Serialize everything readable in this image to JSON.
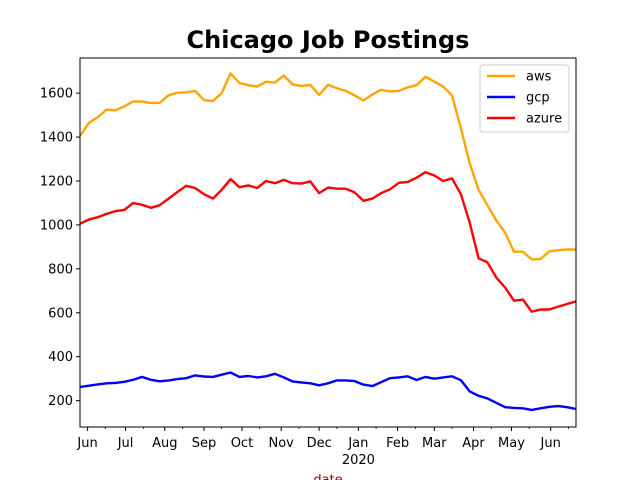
{
  "chart_data": {
    "type": "line",
    "title": "Chicago Job Postings",
    "xlabel": "date",
    "ylabel": "",
    "ylim": [
      80,
      1760
    ],
    "yticks": [
      200,
      400,
      600,
      800,
      1000,
      1200,
      1400,
      1600
    ],
    "xlim": [
      "2019-05-26",
      "2020-06-21"
    ],
    "xtick_labels": [
      {
        "date": "2019-06-01",
        "label": "Jun"
      },
      {
        "date": "2019-07-01",
        "label": "Jul"
      },
      {
        "date": "2019-08-01",
        "label": "Aug"
      },
      {
        "date": "2019-09-01",
        "label": "Sep"
      },
      {
        "date": "2019-10-01",
        "label": "Oct"
      },
      {
        "date": "2019-11-01",
        "label": "Nov"
      },
      {
        "date": "2019-12-01",
        "label": "Dec"
      },
      {
        "date": "2020-01-01",
        "label": "Jan"
      },
      {
        "date": "2020-02-01",
        "label": "Feb"
      },
      {
        "date": "2020-03-01",
        "label": "Mar"
      },
      {
        "date": "2020-04-01",
        "label": "Apr"
      },
      {
        "date": "2020-05-01",
        "label": "May"
      },
      {
        "date": "2020-06-01",
        "label": "Jun"
      }
    ],
    "year_label": "2020",
    "legend_position": "top-right",
    "x": [
      "2019-05-26",
      "2019-06-02",
      "2019-06-09",
      "2019-06-16",
      "2019-06-23",
      "2019-06-30",
      "2019-07-07",
      "2019-07-14",
      "2019-07-21",
      "2019-07-28",
      "2019-08-04",
      "2019-08-11",
      "2019-08-18",
      "2019-08-25",
      "2019-09-01",
      "2019-09-08",
      "2019-09-15",
      "2019-09-22",
      "2019-09-29",
      "2019-10-06",
      "2019-10-13",
      "2019-10-20",
      "2019-10-27",
      "2019-11-03",
      "2019-11-10",
      "2019-11-17",
      "2019-11-24",
      "2019-12-01",
      "2019-12-08",
      "2019-12-15",
      "2019-12-22",
      "2019-12-29",
      "2020-01-05",
      "2020-01-12",
      "2020-01-19",
      "2020-01-26",
      "2020-02-02",
      "2020-02-09",
      "2020-02-16",
      "2020-02-23",
      "2020-03-01",
      "2020-03-08",
      "2020-03-15",
      "2020-03-22",
      "2020-03-29",
      "2020-04-05",
      "2020-04-12",
      "2020-04-19",
      "2020-04-26",
      "2020-05-03",
      "2020-05-10",
      "2020-05-17",
      "2020-05-24",
      "2020-05-31",
      "2020-06-07",
      "2020-06-14",
      "2020-06-21"
    ],
    "series": [
      {
        "name": "aws",
        "color": "#ffa500",
        "values": [
          1405,
          1465,
          1490,
          1525,
          1522,
          1540,
          1562,
          1562,
          1555,
          1556,
          1590,
          1602,
          1604,
          1610,
          1568,
          1564,
          1600,
          1690,
          1646,
          1636,
          1630,
          1652,
          1648,
          1680,
          1640,
          1632,
          1638,
          1592,
          1638,
          1622,
          1610,
          1590,
          1566,
          1594,
          1615,
          1608,
          1610,
          1626,
          1636,
          1675,
          1652,
          1630,
          1590,
          1440,
          1280,
          1160,
          1090,
          1020,
          965,
          878,
          878,
          843,
          845,
          880,
          885,
          888,
          888
        ]
      },
      {
        "name": "gcp",
        "color": "#0000ff",
        "values": [
          262,
          268,
          274,
          279,
          281,
          286,
          295,
          308,
          295,
          288,
          292,
          298,
          302,
          315,
          310,
          308,
          318,
          328,
          308,
          312,
          306,
          311,
          322,
          306,
          287,
          283,
          279,
          270,
          279,
          292,
          292,
          289,
          273,
          266,
          284,
          302,
          306,
          311,
          294,
          308,
          300,
          306,
          311,
          293,
          242,
          222,
          210,
          190,
          170,
          167,
          165,
          158,
          165,
          172,
          175,
          170,
          162
        ]
      },
      {
        "name": "azure",
        "color": "#ff0000",
        "values": [
          1005,
          1025,
          1035,
          1050,
          1063,
          1068,
          1100,
          1092,
          1078,
          1090,
          1120,
          1150,
          1178,
          1168,
          1140,
          1120,
          1160,
          1208,
          1172,
          1180,
          1168,
          1200,
          1190,
          1205,
          1190,
          1188,
          1198,
          1145,
          1170,
          1165,
          1165,
          1148,
          1110,
          1120,
          1145,
          1162,
          1192,
          1196,
          1215,
          1240,
          1225,
          1200,
          1212,
          1140,
          1010,
          848,
          830,
          760,
          715,
          655,
          660,
          605,
          615,
          615,
          628,
          640,
          652
        ]
      }
    ]
  }
}
